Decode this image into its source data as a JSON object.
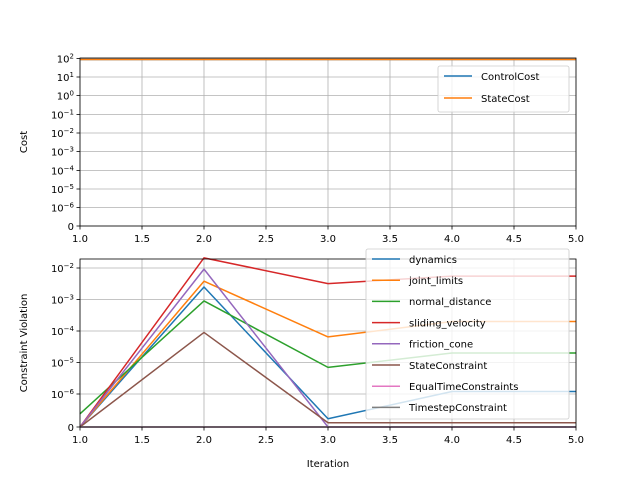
{
  "chart_data": [
    {
      "type": "line",
      "ylabel": "Cost",
      "xlabel": "",
      "xlim": [
        1.0,
        5.0
      ],
      "x_ticks": [
        "1.0",
        "1.5",
        "2.0",
        "2.5",
        "3.0",
        "3.5",
        "4.0",
        "4.5",
        "5.0"
      ],
      "y_scale": "symlog",
      "y_tick_labels": [
        {
          "base": "0",
          "exp": ""
        },
        {
          "base": "10",
          "exp": "−6"
        },
        {
          "base": "10",
          "exp": "−5"
        },
        {
          "base": "10",
          "exp": "−4"
        },
        {
          "base": "10",
          "exp": "−3"
        },
        {
          "base": "10",
          "exp": "−2"
        },
        {
          "base": "10",
          "exp": "−1"
        },
        {
          "base": "10",
          "exp": "0"
        },
        {
          "base": "10",
          "exp": "1"
        },
        {
          "base": "10",
          "exp": "2"
        }
      ],
      "grid": true,
      "legend_position": "upper-right",
      "series": [
        {
          "name": "ControlCost",
          "color": "#1f77b4",
          "x": [
            1,
            2,
            3,
            4,
            5
          ],
          "y": [
            100,
            100,
            100,
            100,
            100
          ]
        },
        {
          "name": "StateCost",
          "color": "#ff7f0e",
          "x": [
            1,
            2,
            3,
            4,
            5
          ],
          "y": [
            100,
            100,
            100,
            100,
            100
          ]
        }
      ]
    },
    {
      "type": "line",
      "ylabel": "Constraint Violation",
      "xlabel": "Iteration",
      "xlim": [
        1.0,
        5.0
      ],
      "x_ticks": [
        "1.0",
        "1.5",
        "2.0",
        "2.5",
        "3.0",
        "3.5",
        "4.0",
        "4.5",
        "5.0"
      ],
      "y_scale": "symlog",
      "y_tick_labels": [
        {
          "base": "0",
          "exp": ""
        },
        {
          "base": "10",
          "exp": "−6"
        },
        {
          "base": "10",
          "exp": "−5"
        },
        {
          "base": "10",
          "exp": "−4"
        },
        {
          "base": "10",
          "exp": "−3"
        },
        {
          "base": "10",
          "exp": "−2"
        }
      ],
      "grid": true,
      "legend_position": "upper-right",
      "series": [
        {
          "name": "dynamics",
          "color": "#1f77b4",
          "x": [
            1,
            2,
            3,
            4,
            5
          ],
          "y": [
            0,
            0.0025,
            2.5e-07,
            1.2e-06,
            1.2e-06
          ]
        },
        {
          "name": "joint_limits",
          "color": "#ff7f0e",
          "x": [
            1,
            2,
            3,
            4,
            5
          ],
          "y": [
            0,
            0.0038,
            6.5e-05,
            0.0002,
            0.0002
          ]
        },
        {
          "name": "normal_distance",
          "color": "#2ca02c",
          "x": [
            1,
            2,
            3,
            4,
            5
          ],
          "y": [
            4e-07,
            0.0009,
            7e-06,
            2e-05,
            2e-05
          ]
        },
        {
          "name": "sliding_velocity",
          "color": "#d62728",
          "x": [
            1,
            2,
            3,
            4,
            5
          ],
          "y": [
            0,
            0.021,
            0.0032,
            0.0055,
            0.0055
          ]
        },
        {
          "name": "friction_cone",
          "color": "#9467bd",
          "x": [
            1,
            2,
            3,
            4,
            5
          ],
          "y": [
            0,
            0.0092,
            0,
            0,
            0
          ]
        },
        {
          "name": "StateConstraint",
          "color": "#8c564b",
          "x": [
            1,
            2,
            3,
            4,
            5
          ],
          "y": [
            0,
            9e-05,
            1.3e-07,
            1.3e-07,
            1.3e-07
          ]
        },
        {
          "name": "EqualTimeConstraints",
          "color": "#e377c2",
          "x": [
            1,
            2,
            3,
            4,
            5
          ],
          "y": [
            0,
            0,
            0,
            0,
            0
          ]
        },
        {
          "name": "TimestepConstraint",
          "color": "#7f7f7f",
          "x": [
            1,
            2,
            3,
            4,
            5
          ],
          "y": [
            0,
            0,
            0,
            0,
            0
          ]
        }
      ]
    }
  ]
}
